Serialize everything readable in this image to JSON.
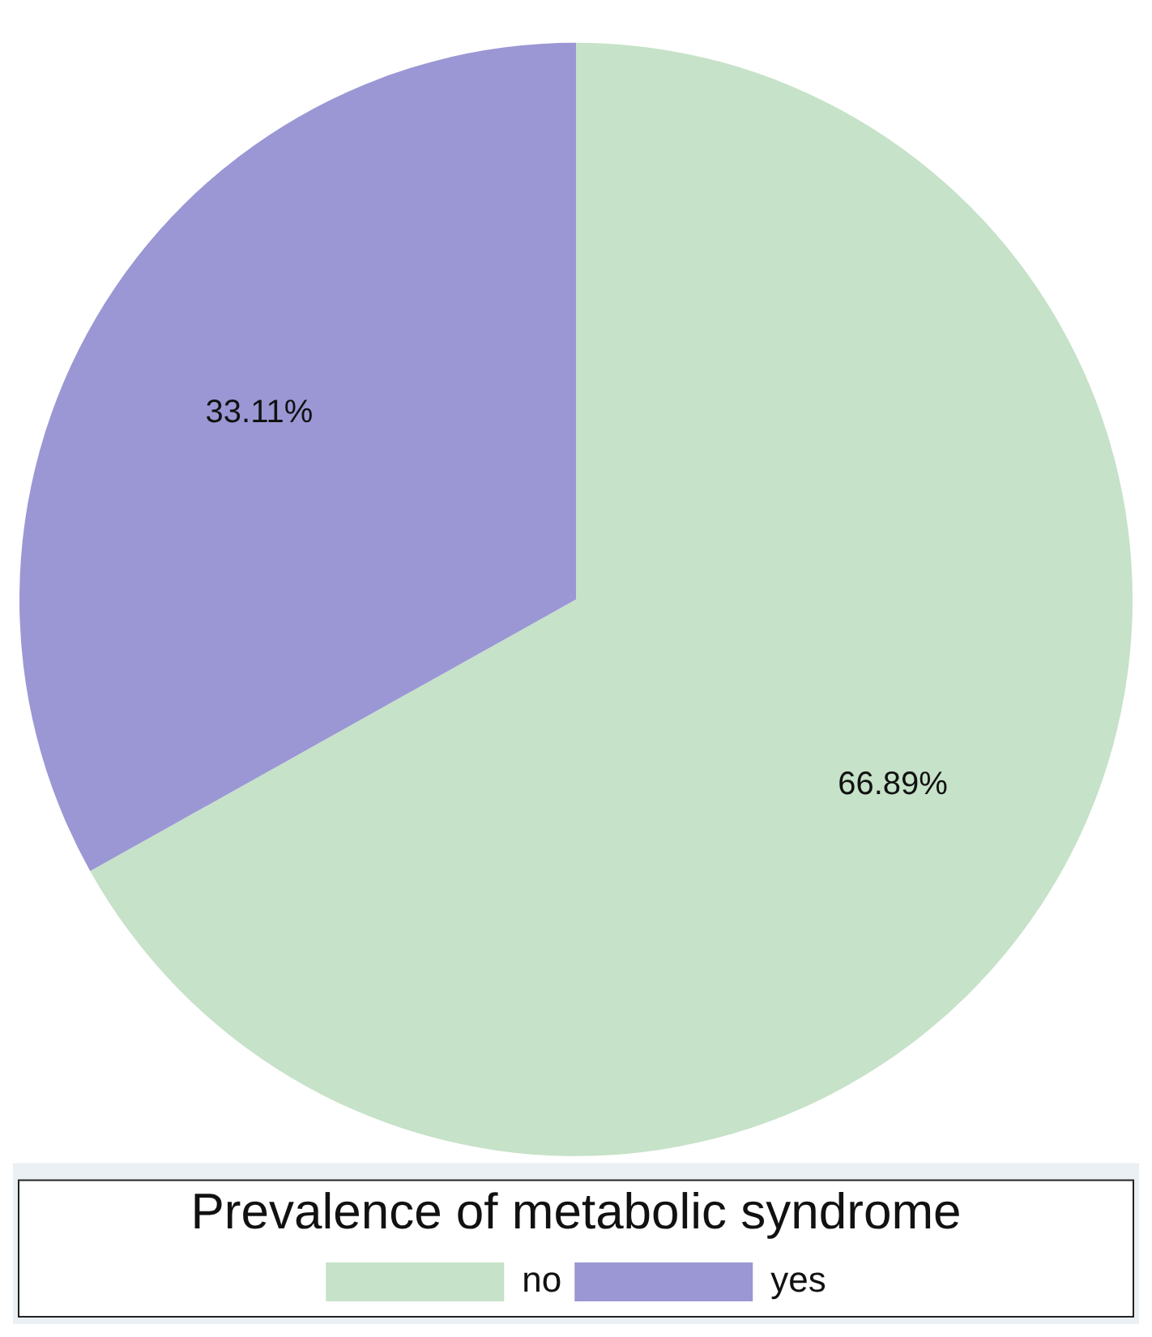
{
  "chart_data": {
    "type": "pie",
    "legend_title": "Prevalence of metabolic syndrome",
    "categories": [
      "no",
      "yes"
    ],
    "values": [
      66.89,
      33.11
    ],
    "colors": [
      "#c6e2c8",
      "#9b97d4"
    ],
    "value_labels": [
      "66.89%",
      "33.11%"
    ],
    "legend": "bottom"
  }
}
